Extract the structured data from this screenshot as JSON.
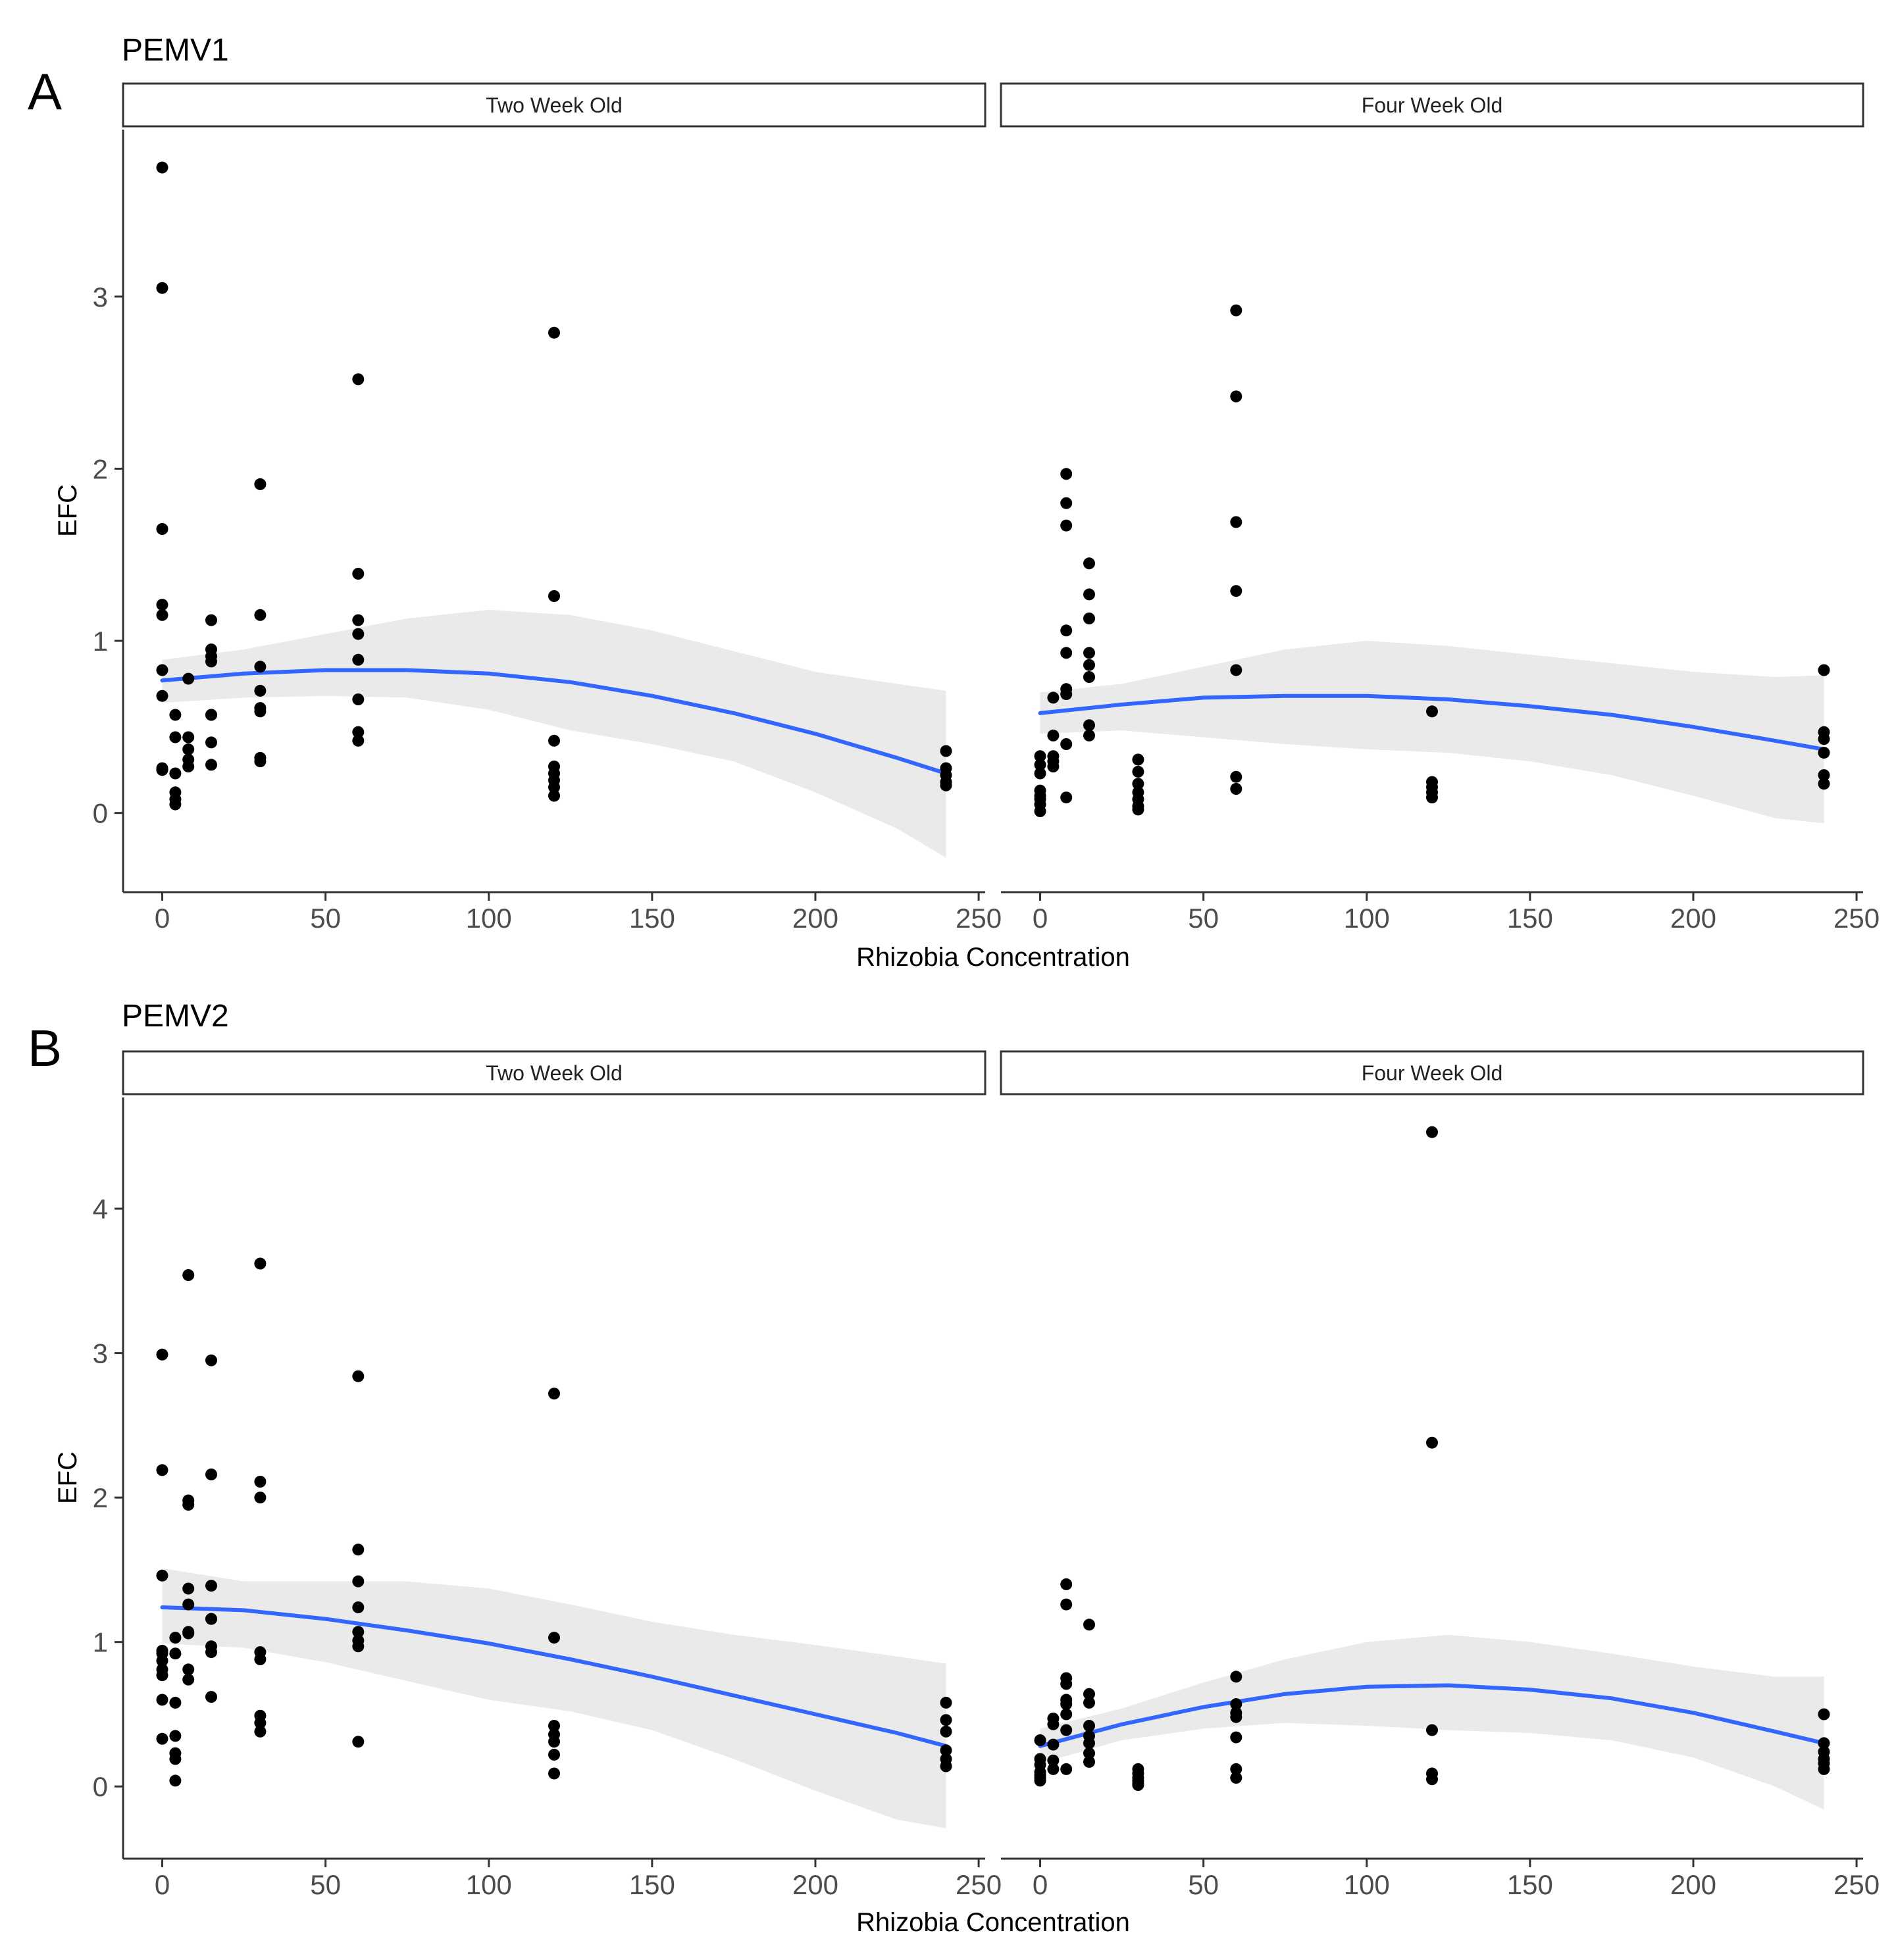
{
  "colors": {
    "point": "#000000",
    "fit_line": "#3366FF",
    "ribbon": "#E5E5E5",
    "axis": "#333333"
  },
  "chart_data": [
    {
      "type": "scatter",
      "panel_letter": "A",
      "title": "PEMV1",
      "xlabel": "Rhizobia Concentration",
      "ylabel": "EFC",
      "xlim": [
        -12,
        252
      ],
      "ylim": [
        -0.46,
        3.97
      ],
      "xticks": [
        0,
        50,
        100,
        150,
        200,
        250
      ],
      "yticks": [
        0,
        1,
        2,
        3
      ],
      "grid": false,
      "smooth": "quadratic fit with confidence band",
      "facets": [
        {
          "label": "Two Week Old",
          "x": [
            0,
            0,
            0,
            0,
            0,
            0,
            0,
            0,
            0,
            0,
            4,
            4,
            4,
            4,
            4,
            4,
            8,
            8,
            8,
            8,
            8,
            15,
            15,
            15,
            15,
            15,
            15,
            15,
            15,
            30,
            30,
            30,
            30,
            30,
            30,
            30,
            30,
            60,
            60,
            60,
            60,
            60,
            60,
            60,
            60,
            120,
            120,
            120,
            120,
            120,
            120,
            120,
            120,
            240,
            240,
            240,
            240,
            240
          ],
          "y": [
            3.75,
            3.05,
            1.65,
            1.21,
            1.15,
            0.83,
            0.68,
            0.26,
            0.25,
            0.25,
            0.57,
            0.44,
            0.23,
            0.12,
            0.08,
            0.05,
            0.78,
            0.44,
            0.37,
            0.31,
            0.27,
            1.12,
            0.95,
            0.91,
            0.88,
            0.57,
            0.41,
            0.28,
            0.57,
            1.91,
            1.15,
            0.85,
            0.71,
            0.61,
            0.59,
            0.32,
            0.3,
            2.52,
            1.39,
            1.12,
            1.04,
            0.89,
            0.66,
            0.47,
            0.42,
            2.79,
            1.26,
            0.42,
            0.27,
            0.23,
            0.19,
            0.15,
            0.1,
            0.36,
            0.26,
            0.22,
            0.18,
            0.16
          ],
          "fit": {
            "x": [
              0,
              25,
              50,
              75,
              100,
              125,
              150,
              175,
              200,
              225,
              240
            ],
            "y": [
              0.77,
              0.81,
              0.83,
              0.83,
              0.81,
              0.76,
              0.68,
              0.58,
              0.46,
              0.32,
              0.23
            ]
          },
          "band": {
            "lower": [
              0.64,
              0.67,
              0.68,
              0.67,
              0.6,
              0.48,
              0.4,
              0.3,
              0.12,
              -0.09,
              -0.26
            ],
            "upper": [
              0.89,
              0.95,
              1.04,
              1.13,
              1.18,
              1.15,
              1.06,
              0.94,
              0.82,
              0.75,
              0.71
            ]
          }
        },
        {
          "label": "Four Week Old",
          "x": [
            0,
            0,
            0,
            0,
            0,
            0,
            0,
            0,
            4,
            4,
            4,
            4,
            4,
            8,
            8,
            8,
            8,
            8,
            8,
            8,
            8,
            8,
            15,
            15,
            15,
            15,
            15,
            15,
            15,
            15,
            30,
            30,
            30,
            30,
            30,
            30,
            30,
            60,
            60,
            60,
            60,
            60,
            60,
            60,
            120,
            120,
            120,
            120,
            120,
            240,
            240,
            240,
            240,
            240,
            240
          ],
          "y": [
            0.33,
            0.28,
            0.23,
            0.13,
            0.1,
            0.08,
            0.05,
            0.01,
            0.67,
            0.45,
            0.33,
            0.3,
            0.27,
            1.97,
            1.8,
            1.67,
            1.06,
            0.93,
            0.72,
            0.69,
            0.4,
            0.09,
            1.45,
            1.27,
            1.13,
            0.93,
            0.86,
            0.79,
            0.51,
            0.45,
            0.31,
            0.24,
            0.17,
            0.12,
            0.08,
            0.04,
            0.02,
            2.92,
            2.42,
            1.69,
            1.29,
            0.83,
            0.21,
            0.14,
            0.59,
            0.18,
            0.15,
            0.12,
            0.09,
            0.83,
            0.47,
            0.43,
            0.35,
            0.22,
            0.17
          ],
          "fit": {
            "x": [
              0,
              25,
              50,
              75,
              100,
              125,
              150,
              175,
              200,
              225,
              240
            ],
            "y": [
              0.58,
              0.63,
              0.67,
              0.68,
              0.68,
              0.66,
              0.62,
              0.57,
              0.5,
              0.42,
              0.37
            ]
          },
          "band": {
            "lower": [
              0.46,
              0.48,
              0.44,
              0.4,
              0.37,
              0.35,
              0.3,
              0.22,
              0.1,
              -0.03,
              -0.06
            ],
            "upper": [
              0.7,
              0.75,
              0.85,
              0.95,
              1.0,
              0.97,
              0.92,
              0.87,
              0.82,
              0.79,
              0.8
            ]
          }
        }
      ]
    },
    {
      "type": "scatter",
      "panel_letter": "B",
      "title": "PEMV2",
      "xlabel": "Rhizobia Concentration",
      "ylabel": "EFC",
      "xlim": [
        -12,
        252
      ],
      "ylim": [
        -0.5,
        4.77
      ],
      "xticks": [
        0,
        50,
        100,
        150,
        200,
        250
      ],
      "yticks": [
        0,
        1,
        2,
        3,
        4
      ],
      "grid": false,
      "smooth": "quadratic fit with confidence band",
      "facets": [
        {
          "label": "Two Week Old",
          "x": [
            0,
            0,
            0,
            0,
            0,
            0,
            0,
            0,
            0,
            0,
            4,
            4,
            4,
            4,
            4,
            4,
            4,
            8,
            8,
            8,
            8,
            8,
            8,
            8,
            8,
            8,
            15,
            15,
            15,
            15,
            15,
            15,
            15,
            15,
            30,
            30,
            30,
            30,
            30,
            30,
            30,
            30,
            60,
            60,
            60,
            60,
            60,
            60,
            60,
            60,
            120,
            120,
            120,
            120,
            120,
            120,
            120,
            240,
            240,
            240,
            240,
            240,
            240
          ],
          "y": [
            2.99,
            2.19,
            1.46,
            0.94,
            0.87,
            0.81,
            0.77,
            0.6,
            0.33,
            0.92,
            1.03,
            0.92,
            0.58,
            0.35,
            0.23,
            0.19,
            0.04,
            3.54,
            1.98,
            1.95,
            1.37,
            1.26,
            1.07,
            0.81,
            0.74,
            1.06,
            2.95,
            2.16,
            1.39,
            1.16,
            0.97,
            0.93,
            0.62,
            1.16,
            3.62,
            2.11,
            2.0,
            0.93,
            0.88,
            0.49,
            0.44,
            0.38,
            2.84,
            1.64,
            1.42,
            1.24,
            1.07,
            1.01,
            0.97,
            0.31,
            2.72,
            1.03,
            0.42,
            0.36,
            0.31,
            0.22,
            0.09,
            0.58,
            0.46,
            0.38,
            0.25,
            0.19,
            0.14
          ],
          "fit": {
            "x": [
              0,
              25,
              50,
              75,
              100,
              125,
              150,
              175,
              200,
              225,
              240
            ],
            "y": [
              1.24,
              1.22,
              1.16,
              1.08,
              0.99,
              0.88,
              0.76,
              0.63,
              0.5,
              0.37,
              0.28
            ]
          },
          "band": {
            "lower": [
              0.99,
              0.96,
              0.86,
              0.73,
              0.6,
              0.52,
              0.39,
              0.19,
              -0.03,
              -0.23,
              -0.29
            ],
            "upper": [
              1.51,
              1.42,
              1.42,
              1.42,
              1.37,
              1.26,
              1.14,
              1.05,
              0.98,
              0.9,
              0.85
            ]
          }
        },
        {
          "label": "Four Week Old",
          "x": [
            0,
            0,
            0,
            0,
            0,
            0,
            0,
            4,
            4,
            4,
            4,
            4,
            8,
            8,
            8,
            8,
            8,
            8,
            8,
            8,
            8,
            15,
            15,
            15,
            15,
            15,
            15,
            15,
            15,
            30,
            30,
            30,
            30,
            30,
            30,
            60,
            60,
            60,
            60,
            60,
            60,
            60,
            120,
            120,
            120,
            120,
            120,
            240,
            240,
            240,
            240,
            240,
            240
          ],
          "y": [
            0.32,
            0.19,
            0.15,
            0.1,
            0.08,
            0.06,
            0.04,
            0.47,
            0.43,
            0.29,
            0.18,
            0.12,
            1.4,
            1.26,
            0.75,
            0.71,
            0.6,
            0.57,
            0.5,
            0.39,
            0.12,
            1.12,
            0.64,
            0.58,
            0.42,
            0.3,
            0.23,
            0.17,
            0.35,
            0.12,
            0.09,
            0.06,
            0.04,
            0.02,
            0.01,
            0.76,
            0.57,
            0.51,
            0.48,
            0.34,
            0.12,
            0.06,
            4.53,
            2.38,
            0.39,
            0.09,
            0.05,
            0.5,
            0.3,
            0.24,
            0.19,
            0.16,
            0.12
          ],
          "fit": {
            "x": [
              0,
              25,
              50,
              75,
              100,
              125,
              150,
              175,
              200,
              225,
              240
            ],
            "y": [
              0.28,
              0.43,
              0.55,
              0.64,
              0.69,
              0.7,
              0.67,
              0.61,
              0.51,
              0.38,
              0.3
            ]
          },
          "band": {
            "lower": [
              0.16,
              0.32,
              0.4,
              0.44,
              0.42,
              0.39,
              0.37,
              0.32,
              0.2,
              0.0,
              -0.16
            ],
            "upper": [
              0.4,
              0.54,
              0.72,
              0.88,
              1.0,
              1.05,
              1.0,
              0.92,
              0.83,
              0.76,
              0.76
            ]
          }
        }
      ]
    }
  ]
}
